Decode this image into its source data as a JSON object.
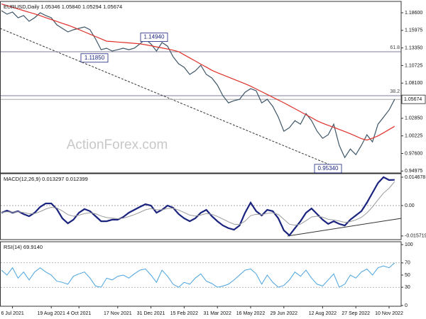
{
  "chart_data": [
    {
      "type": "line",
      "title": "EURUSD,Daily  1.05346 1.05840 1.05294 1.05674",
      "watermark": "ActionForex.com",
      "ylim": [
        0.9469,
        1.2029
      ],
      "yticks": [
        {
          "value": 1.186,
          "label": "1.18600"
        },
        1.15975,
        {
          "value": 1.1335,
          "label": "1.13350"
        },
        1.10725,
        {
          "value": 1.081,
          "label": "1.08100"
        },
        {
          "value": 1.0285,
          "label": "1.02850"
        },
        1.00225,
        {
          "value": 0.976,
          "label": "0.97600"
        },
        0.94975
      ],
      "levels": [
        {
          "value": 1.1278,
          "label": "61.8"
        },
        {
          "value": 1.0622,
          "label": "38.2"
        }
      ],
      "last_price": {
        "value": 1.05674,
        "label": "1.05674"
      },
      "annotations": [
        {
          "value": 1.1494,
          "label": "1.14940"
        },
        {
          "value": 1.1185,
          "label": "1.11850"
        },
        {
          "value": 0.9534,
          "label": "0.95340"
        }
      ],
      "series": [
        {
          "color": "#3d5566",
          "values": [
            1.1892,
            1.1839,
            1.1871,
            1.1786,
            1.1818,
            1.1733,
            1.1786,
            1.186,
            1.1818,
            1.1786,
            1.168,
            1.1627,
            1.1574,
            1.1606,
            1.1627,
            1.1648,
            1.1606,
            1.1468,
            1.1309,
            1.1331,
            1.1288,
            1.1309,
            1.1331,
            1.1309,
            1.1331,
            1.1394,
            1.1468,
            1.1394,
            1.1288,
            1.1415,
            1.1362,
            1.1203,
            1.1098,
            1.1045,
            1.0939,
            1.0992,
            1.1076,
            1.0939,
            1.0886,
            1.078,
            1.0621,
            1.0515,
            1.0547,
            1.0568,
            1.0674,
            1.0727,
            1.0695,
            1.0515,
            1.0568,
            1.0462,
            1.0303,
            1.0092,
            1.0145,
            1.025,
            1.0197,
            1.0356,
            1.025,
            1.0092,
            0.9986,
            1.0039,
            1.0197,
            0.988,
            0.97,
            0.9827,
            0.9742,
            0.988,
            1.0039,
            0.9933,
            1.0197,
            1.0303,
            1.0409,
            1.0567
          ]
        },
        {
          "color": "#e0302a",
          "values": [
            1.1991,
            1.1967,
            1.1942,
            1.1917,
            1.1892,
            1.1867,
            1.1843,
            1.1816,
            1.1787,
            1.1759,
            1.1731,
            1.1702,
            1.1675,
            1.1644,
            1.1609,
            1.1574,
            1.1539,
            1.1505,
            1.147,
            1.1436,
            1.143,
            1.1423,
            1.1416,
            1.141,
            1.1404,
            1.1396,
            1.1383,
            1.1368,
            1.1351,
            1.1335,
            1.1318,
            1.1301,
            1.1279,
            1.1232,
            1.1186,
            1.114,
            1.1093,
            1.1048,
            1.1001,
            1.0965,
            1.0932,
            1.0899,
            1.0866,
            1.0833,
            1.08,
            1.0764,
            1.0723,
            1.0681,
            1.064,
            1.0599,
            1.0557,
            1.0516,
            1.0472,
            1.0427,
            1.0383,
            1.0338,
            1.0294,
            1.0248,
            1.0212,
            1.018,
            1.015,
            1.0119,
            1.0087,
            1.0054,
            1.0018,
            0.9981,
            0.996,
            0.9988,
            1.0022,
            1.0069,
            1.0117,
            1.0165
          ]
        }
      ]
    },
    {
      "type": "line",
      "title": "MACD(12,26,9) 0.013297 0.012399",
      "ylim": [
        -0.0176,
        0.0165
      ],
      "yticks": [
        0.014678,
        {
          "value": 0,
          "label": "0.00"
        },
        -0.015719
      ],
      "levels": [
        0
      ],
      "series": [
        {
          "color": "#1a237e",
          "width": 2.2,
          "values": [
            -0.0037,
            -0.0026,
            -0.0037,
            -0.0029,
            -0.0044,
            -0.0055,
            -0.0037,
            -0.0007,
            0.0011,
            0.0011,
            -0.0018,
            -0.0066,
            -0.0092,
            -0.0073,
            -0.0037,
            -0.0018,
            -0.0029,
            -0.0055,
            -0.0081,
            -0.0081,
            -0.0073,
            -0.0073,
            -0.0059,
            -0.0037,
            -0.0022,
            -0.0007,
            0.0007,
            0.0,
            -0.0037,
            -0.0022,
            0.0,
            -0.0011,
            -0.0044,
            -0.0066,
            -0.0081,
            -0.0066,
            -0.0037,
            -0.0022,
            -0.0055,
            -0.0081,
            -0.0103,
            -0.0117,
            -0.0125,
            -0.0103,
            -0.0037,
            0.0015,
            -0.0029,
            -0.0051,
            -0.0022,
            -0.0029,
            -0.0066,
            -0.0128,
            -0.0154,
            -0.0117,
            -0.0081,
            -0.0037,
            -0.0015,
            -0.0044,
            -0.0073,
            -0.0095,
            -0.0081,
            -0.0095,
            -0.0103,
            -0.0073,
            -0.0051,
            -0.0029,
            0.0015,
            0.0066,
            0.0117,
            0.0147,
            0.0132,
            0.0133
          ]
        },
        {
          "color": "#9a9a9a",
          "width": 1,
          "values": [
            -0.0035,
            -0.0032,
            -0.0034,
            -0.0032,
            -0.0036,
            -0.0042,
            -0.0041,
            -0.0031,
            -0.0018,
            -0.0009,
            -0.0012,
            -0.0028,
            -0.0047,
            -0.0055,
            -0.005,
            -0.0041,
            -0.0037,
            -0.0042,
            -0.0054,
            -0.0062,
            -0.0065,
            -0.0068,
            -0.0065,
            -0.0057,
            -0.0047,
            -0.0035,
            -0.0022,
            -0.0015,
            -0.0022,
            -0.0022,
            -0.0015,
            -0.0014,
            -0.0023,
            -0.0036,
            -0.0049,
            -0.0054,
            -0.0049,
            -0.0041,
            -0.0045,
            -0.0056,
            -0.007,
            -0.0084,
            -0.0096,
            -0.0098,
            -0.008,
            -0.0052,
            -0.0045,
            -0.0047,
            -0.004,
            -0.0037,
            -0.0046,
            -0.0071,
            -0.0096,
            -0.0102,
            -0.0096,
            -0.0078,
            -0.0059,
            -0.0055,
            -0.006,
            -0.0071,
            -0.0074,
            -0.008,
            -0.0087,
            -0.0083,
            -0.0074,
            -0.0061,
            -0.0038,
            -0.0007,
            0.003,
            0.0065,
            0.009,
            0.0124
          ]
        }
      ]
    },
    {
      "type": "line",
      "title": "RSI(14) 69.9140",
      "ylim": [
        -1.2,
        104.7
      ],
      "yticks": [
        100,
        70,
        50,
        30,
        0
      ],
      "levels": [
        70,
        30
      ],
      "categories": [
        null,
        null,
        "6 Jul 2021",
        null,
        null,
        null,
        null,
        null,
        null,
        "19 Aug 2021",
        null,
        null,
        null,
        null,
        "4 Oct 2021",
        null,
        null,
        null,
        null,
        null,
        null,
        "17 Nov 2021",
        null,
        null,
        null,
        null,
        null,
        "31 Dec 2021",
        null,
        null,
        null,
        null,
        null,
        "15 Feb 2022",
        null,
        null,
        null,
        null,
        null,
        "31 Mar 2022",
        null,
        null,
        null,
        null,
        null,
        "16 May 2022",
        null,
        null,
        null,
        null,
        null,
        "29 Jun 2022",
        null,
        null,
        null,
        null,
        null,
        null,
        "12 Aug 2022",
        null,
        null,
        null,
        null,
        null,
        "27 Sep 2022",
        null,
        null,
        null,
        null,
        null,
        "10 Nov 2022",
        null
      ],
      "series": [
        {
          "color": "#4aa3df",
          "width": 1,
          "values": [
            58,
            50,
            62,
            45,
            55,
            42,
            55,
            62,
            55,
            50,
            40,
            38,
            35,
            48,
            52,
            55,
            45,
            32,
            30,
            45,
            42,
            48,
            50,
            45,
            52,
            58,
            60,
            50,
            38,
            58,
            48,
            35,
            30,
            38,
            35,
            45,
            52,
            40,
            36,
            30,
            32,
            35,
            42,
            50,
            58,
            60,
            52,
            35,
            50,
            38,
            30,
            33,
            42,
            55,
            48,
            58,
            45,
            35,
            32,
            42,
            52,
            30,
            35,
            50,
            45,
            55,
            60,
            50,
            62,
            65,
            62,
            69.914
          ]
        }
      ]
    }
  ]
}
